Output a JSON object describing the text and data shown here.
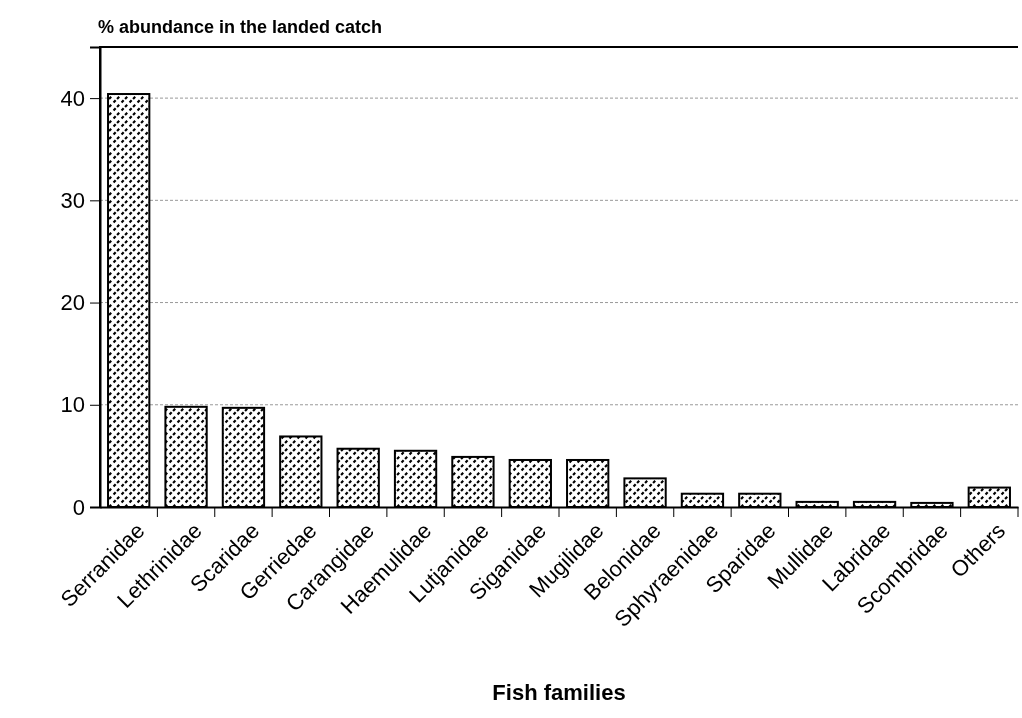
{
  "chart_data": {
    "type": "bar",
    "ylabel": "% abundance in the landed catch",
    "xlabel": "Fish families",
    "categories": [
      "Serranidae",
      "Lethrinidae",
      "Scaridae",
      "Gerriedae",
      "Carangidae",
      "Haemulidae",
      "Lutjanidae",
      "Siganidae",
      "Mugilidae",
      "Belonidae",
      "Sphyraenidae",
      "Sparidae",
      "Mullidae",
      "Labridae",
      "Scombridae",
      "Others"
    ],
    "values": [
      40.4,
      9.8,
      9.7,
      6.9,
      5.7,
      5.5,
      4.9,
      4.6,
      4.6,
      2.8,
      1.3,
      1.3,
      0.5,
      0.5,
      0.4,
      1.9
    ],
    "color": "#000000",
    "ylim": [
      0,
      45
    ],
    "yticks": [
      0,
      10,
      20,
      30,
      40
    ],
    "grid": "y"
  }
}
